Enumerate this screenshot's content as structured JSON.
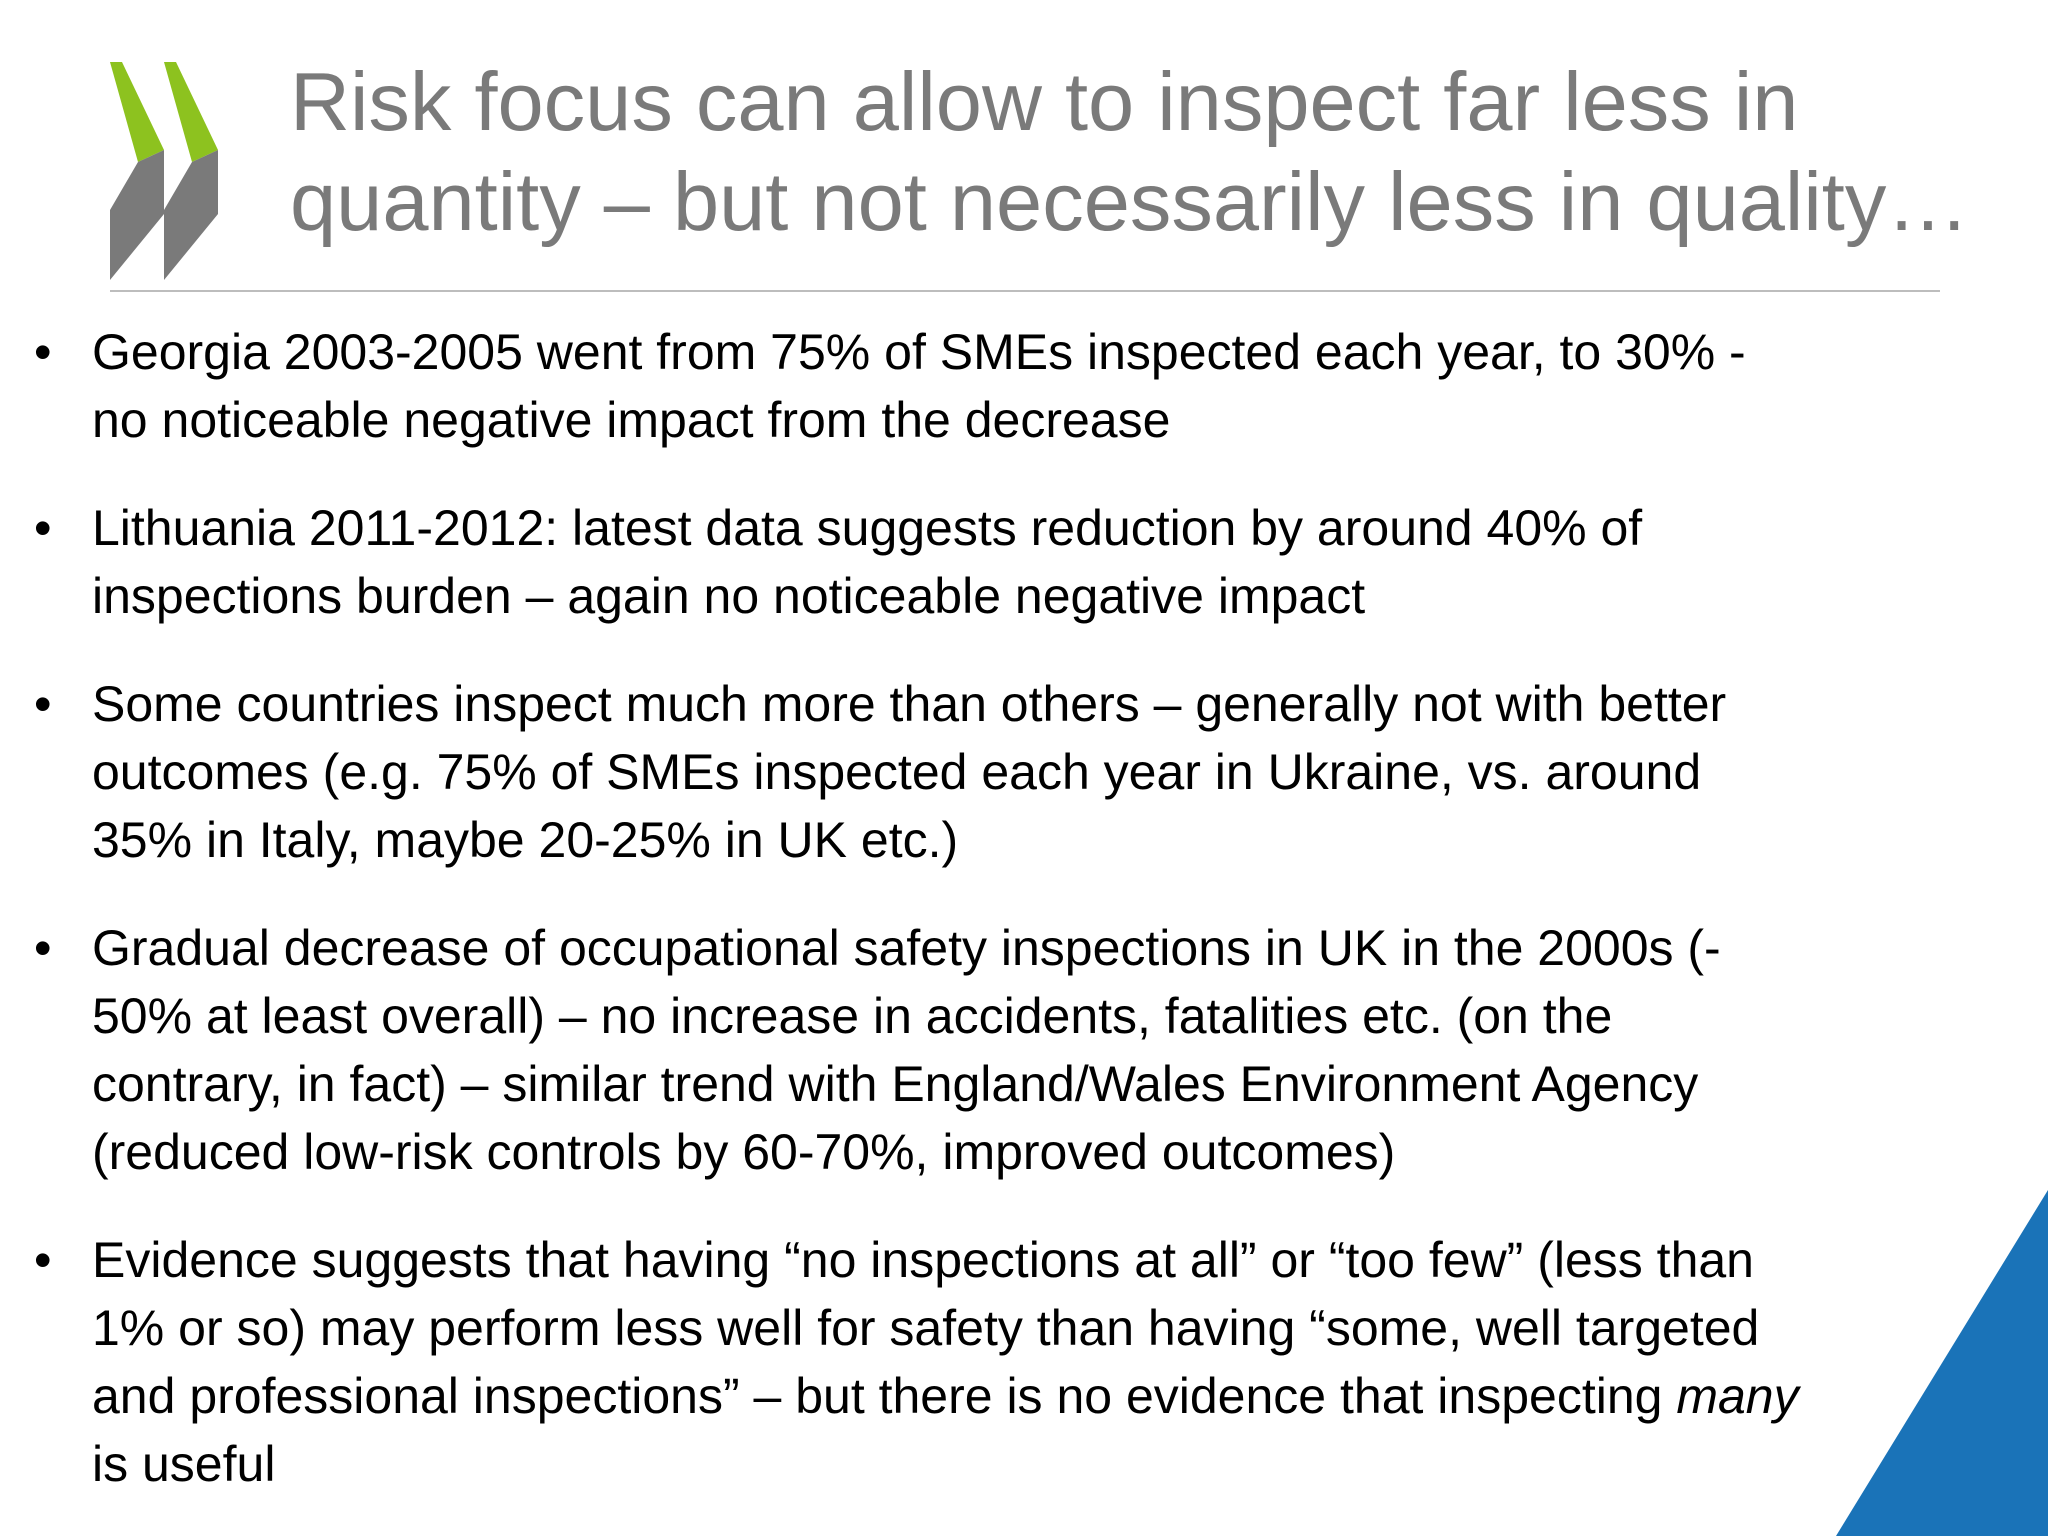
{
  "slide": {
    "title_lines": [
      "Risk focus can allow to inspect far less in",
      "quantity – but not necessarily less in quality…"
    ],
    "bullets": [
      {
        "lines": [
          "Georgia 2003-2005 went from 75% of SMEs inspected each year, to 30% -",
          "no noticeable negative impact from the decrease"
        ]
      },
      {
        "lines": [
          "Lithuania 2011-2012: latest data suggests reduction by around 40% of",
          "inspections burden – again no noticeable negative impact"
        ]
      },
      {
        "lines": [
          "Some countries inspect much more than others – generally not with better",
          "outcomes (e.g. 75% of SMEs inspected each year in Ukraine, vs. around",
          "35% in Italy, maybe 20-25% in UK etc.)"
        ]
      },
      {
        "lines": [
          "Gradual decrease of occupational safety inspections in UK in the 2000s (-",
          "50% at least overall) – no increase in accidents, fatalities etc. (on the",
          "contrary, in fact) – similar trend with England/Wales Environment Agency",
          "(reduced low-risk controls by 60-70%, improved outcomes)"
        ]
      },
      {
        "lines": [
          "Evidence suggests that having “no inspections at all” or “too few” (less than",
          "1% or so) may perform less well for safety than having “some, well targeted",
          "and professional inspections” – but there is no evidence that inspecting ",
          "is useful"
        ],
        "emphasis": "many"
      }
    ],
    "bullet_symbol": "•"
  },
  "colors": {
    "title": "#7a7a7a",
    "logo_green": "#8dc21f",
    "logo_gray": "#7a7a7a",
    "corner_blue": "#1a73b8",
    "rule": "#bdbdbd"
  },
  "icons": {
    "logo": "oecd-chevrons-logo"
  }
}
